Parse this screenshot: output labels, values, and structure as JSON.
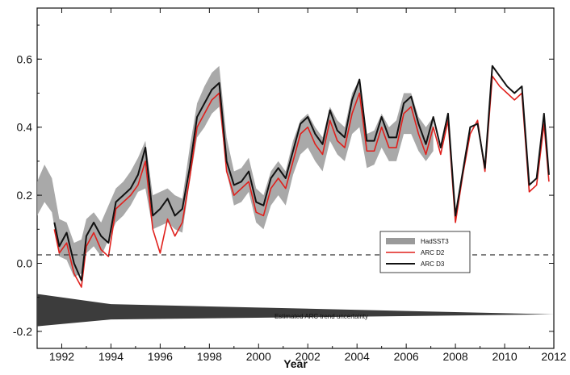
{
  "chart_data": {
    "type": "line",
    "title": "",
    "xlabel": "Year",
    "ylabel": "",
    "xlim": [
      1991,
      2012
    ],
    "ylim": [
      -0.25,
      0.75
    ],
    "x_ticks": [
      1992,
      1994,
      1996,
      1998,
      2000,
      2002,
      2004,
      2006,
      2008,
      2010,
      2012
    ],
    "y_ticks": [
      -0.2,
      0.0,
      0.2,
      0.4,
      0.6
    ],
    "y_tick_labels": [
      "-0.2",
      "0.0",
      "0.2",
      "0.4",
      "0.6"
    ],
    "zero_line": "dashed",
    "grid": false,
    "legend_position": "lower-right",
    "annotation": "Estimated ARC trend uncertainty",
    "series": [
      {
        "name": "HadSST3",
        "color": "#9a9a9a",
        "style": "band",
        "x": [
          1991.0,
          1991.3,
          1991.6,
          1991.9,
          1992.2,
          1992.5,
          1992.8,
          1993.0,
          1993.3,
          1993.6,
          1993.9,
          1994.2,
          1994.5,
          1994.8,
          1995.1,
          1995.4,
          1995.7,
          1996.0,
          1996.3,
          1996.6,
          1996.9,
          1997.2,
          1997.5,
          1997.8,
          1998.1,
          1998.4,
          1998.7,
          1999.0,
          1999.3,
          1999.6,
          1999.9,
          2000.2,
          2000.5,
          2000.8,
          2001.1,
          2001.4,
          2001.7,
          2002.0,
          2002.3,
          2002.6,
          2002.9,
          2003.2,
          2003.5,
          2003.8,
          2004.1,
          2004.4,
          2004.7,
          2005.0,
          2005.3,
          2005.6,
          2005.9,
          2006.2,
          2006.5,
          2006.8,
          2007.1
        ],
        "lower": [
          0.14,
          0.18,
          0.15,
          0.02,
          0.01,
          -0.04,
          -0.03,
          0.03,
          0.05,
          0.02,
          0.07,
          0.12,
          0.14,
          0.17,
          0.21,
          0.22,
          0.1,
          0.11,
          0.12,
          0.1,
          0.09,
          0.24,
          0.37,
          0.4,
          0.44,
          0.46,
          0.27,
          0.17,
          0.18,
          0.21,
          0.12,
          0.1,
          0.17,
          0.2,
          0.17,
          0.26,
          0.32,
          0.34,
          0.3,
          0.27,
          0.36,
          0.32,
          0.3,
          0.38,
          0.4,
          0.28,
          0.29,
          0.34,
          0.3,
          0.3,
          0.38,
          0.38,
          0.33,
          0.3,
          0.33
        ],
        "upper": [
          0.24,
          0.29,
          0.25,
          0.13,
          0.12,
          0.06,
          0.07,
          0.13,
          0.15,
          0.12,
          0.17,
          0.22,
          0.24,
          0.27,
          0.31,
          0.36,
          0.2,
          0.21,
          0.22,
          0.2,
          0.19,
          0.34,
          0.47,
          0.52,
          0.56,
          0.58,
          0.37,
          0.27,
          0.28,
          0.31,
          0.22,
          0.2,
          0.27,
          0.3,
          0.27,
          0.36,
          0.42,
          0.44,
          0.4,
          0.37,
          0.46,
          0.42,
          0.4,
          0.5,
          0.54,
          0.38,
          0.39,
          0.44,
          0.4,
          0.42,
          0.5,
          0.5,
          0.43,
          0.4,
          0.43
        ]
      },
      {
        "name": "ARC D2",
        "color": "#e0201c",
        "style": "line",
        "x": [
          1991.7,
          1991.9,
          1992.2,
          1992.5,
          1992.8,
          1993.0,
          1993.3,
          1993.6,
          1993.9,
          1994.2,
          1994.5,
          1994.8,
          1995.1,
          1995.4,
          1995.7,
          1996.0,
          1996.3,
          1996.6,
          1996.9,
          1997.2,
          1997.5,
          1997.8,
          1998.1,
          1998.4,
          1998.7,
          1999.0,
          1999.3,
          1999.6,
          1999.9,
          2000.2,
          2000.5,
          2000.8,
          2001.1,
          2001.4,
          2001.7,
          2002.0,
          2002.3,
          2002.6,
          2002.9,
          2003.2,
          2003.5,
          2003.8,
          2004.1,
          2004.4,
          2004.7,
          2005.0,
          2005.3,
          2005.6,
          2005.9,
          2006.2,
          2006.5,
          2006.8,
          2007.1,
          2007.4,
          2007.7,
          2008.0,
          2008.3,
          2008.6,
          2008.9,
          2009.2,
          2009.5,
          2009.8,
          2010.1,
          2010.4,
          2010.7,
          2011.0,
          2011.3,
          2011.6,
          2011.8
        ],
        "values": [
          0.1,
          0.03,
          0.06,
          -0.03,
          -0.07,
          0.05,
          0.09,
          0.04,
          0.02,
          0.16,
          0.18,
          0.2,
          0.23,
          0.3,
          0.1,
          0.03,
          0.13,
          0.08,
          0.12,
          0.25,
          0.4,
          0.44,
          0.48,
          0.5,
          0.27,
          0.2,
          0.22,
          0.24,
          0.15,
          0.14,
          0.22,
          0.25,
          0.22,
          0.3,
          0.38,
          0.4,
          0.35,
          0.32,
          0.42,
          0.36,
          0.34,
          0.44,
          0.5,
          0.33,
          0.33,
          0.4,
          0.34,
          0.34,
          0.44,
          0.46,
          0.38,
          0.32,
          0.4,
          0.32,
          0.42,
          0.12,
          0.26,
          0.38,
          0.42,
          0.27,
          0.55,
          0.52,
          0.5,
          0.48,
          0.5,
          0.21,
          0.23,
          0.41,
          0.24
        ]
      },
      {
        "name": "ARC D3",
        "color": "#111111",
        "style": "line",
        "x": [
          1991.7,
          1991.9,
          1992.2,
          1992.5,
          1992.8,
          1993.0,
          1993.3,
          1993.6,
          1993.9,
          1994.2,
          1994.5,
          1994.8,
          1995.1,
          1995.4,
          1995.7,
          1996.0,
          1996.3,
          1996.6,
          1996.9,
          1997.2,
          1997.5,
          1997.8,
          1998.1,
          1998.4,
          1998.7,
          1999.0,
          1999.3,
          1999.6,
          1999.9,
          2000.2,
          2000.5,
          2000.8,
          2001.1,
          2001.4,
          2001.7,
          2002.0,
          2002.3,
          2002.6,
          2002.9,
          2003.2,
          2003.5,
          2003.8,
          2004.1,
          2004.4,
          2004.7,
          2005.0,
          2005.3,
          2005.6,
          2005.9,
          2006.2,
          2006.5,
          2006.8,
          2007.1,
          2007.4,
          2007.7,
          2008.0,
          2008.3,
          2008.6,
          2008.9,
          2009.2,
          2009.5,
          2009.8,
          2010.1,
          2010.4,
          2010.7,
          2011.0,
          2011.3,
          2011.6,
          2011.8
        ],
        "values": [
          0.12,
          0.05,
          0.09,
          0.0,
          -0.05,
          0.08,
          0.12,
          0.08,
          0.06,
          0.18,
          0.2,
          0.22,
          0.26,
          0.34,
          0.14,
          0.16,
          0.19,
          0.14,
          0.16,
          0.28,
          0.43,
          0.47,
          0.51,
          0.53,
          0.3,
          0.23,
          0.24,
          0.27,
          0.18,
          0.17,
          0.25,
          0.28,
          0.25,
          0.33,
          0.41,
          0.43,
          0.38,
          0.35,
          0.45,
          0.39,
          0.37,
          0.48,
          0.54,
          0.36,
          0.36,
          0.43,
          0.37,
          0.37,
          0.47,
          0.49,
          0.41,
          0.35,
          0.43,
          0.34,
          0.44,
          0.14,
          0.27,
          0.4,
          0.41,
          0.28,
          0.58,
          0.55,
          0.52,
          0.5,
          0.52,
          0.23,
          0.25,
          0.44,
          0.26
        ]
      }
    ],
    "uncertainty_band": {
      "name": "Estimated ARC trend uncertainty",
      "color": "#3c3c3c",
      "x": [
        1991.0,
        1994.0,
        2012.0
      ],
      "lower": [
        -0.185,
        -0.165,
        -0.15
      ],
      "upper": [
        -0.09,
        -0.12,
        -0.15
      ]
    }
  }
}
